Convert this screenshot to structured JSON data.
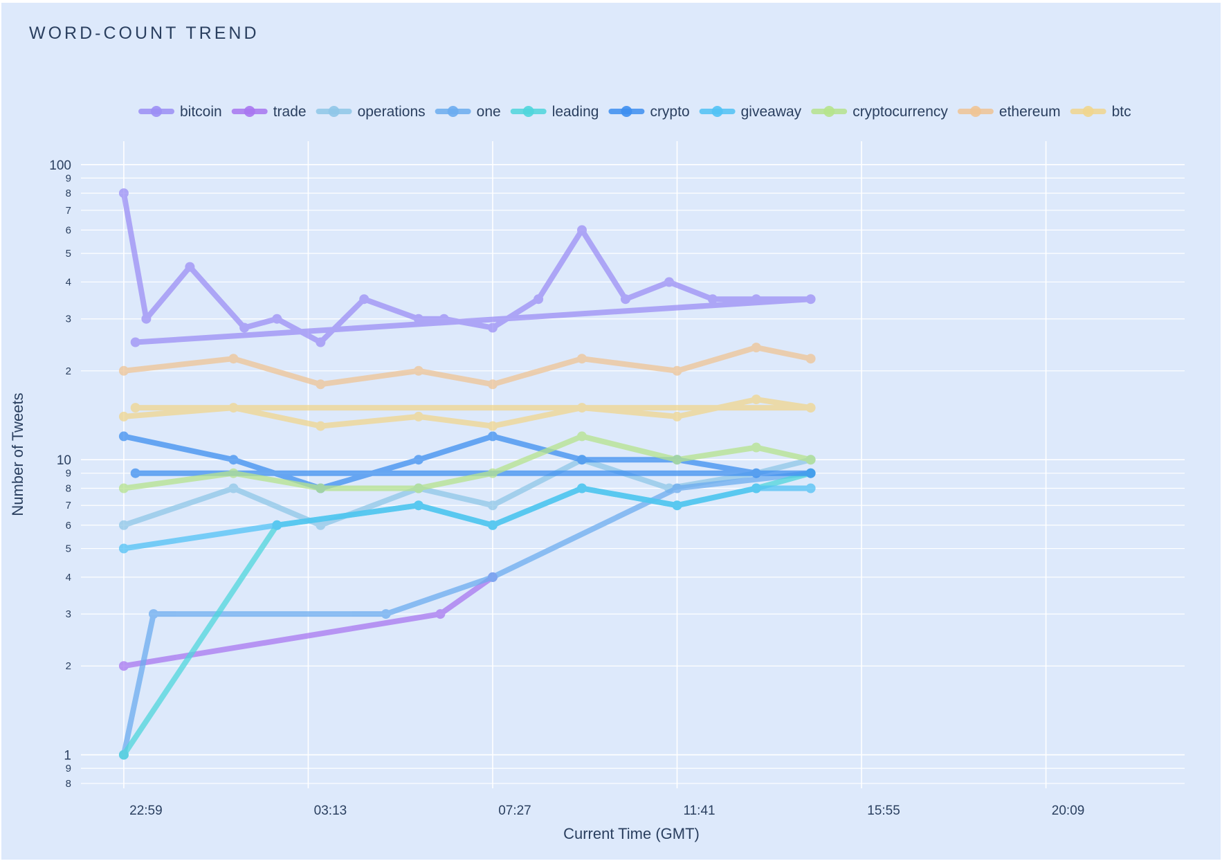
{
  "chart_data": {
    "type": "line",
    "title": "WORD-COUNT TREND",
    "xlabel": "Current Time (GMT)",
    "ylabel": "Number of Tweets",
    "y_scale": "log",
    "ylim": [
      0.77,
      120
    ],
    "xlim": [
      "22:00",
      "23:20 (+1 day)"
    ],
    "x_tick_labels": [
      "22:59",
      "03:13",
      "07:27",
      "11:41",
      "15:55",
      "20:09"
    ],
    "y_major_ticks": [
      {
        "value": 1,
        "label": "1"
      },
      {
        "value": 10,
        "label": "10"
      },
      {
        "value": 100,
        "label": "100"
      }
    ],
    "y_minor_ticks": [
      {
        "value": 0.8,
        "label": "8"
      },
      {
        "value": 0.9,
        "label": "9"
      },
      {
        "value": 2,
        "label": "2"
      },
      {
        "value": 3,
        "label": "3"
      },
      {
        "value": 4,
        "label": "4"
      },
      {
        "value": 5,
        "label": "5"
      },
      {
        "value": 6,
        "label": "6"
      },
      {
        "value": 7,
        "label": "7"
      },
      {
        "value": 8,
        "label": "8"
      },
      {
        "value": 9,
        "label": "9"
      },
      {
        "value": 20,
        "label": "2"
      },
      {
        "value": 30,
        "label": "3"
      },
      {
        "value": 40,
        "label": "4"
      },
      {
        "value": 50,
        "label": "5"
      },
      {
        "value": 60,
        "label": "6"
      },
      {
        "value": 70,
        "label": "7"
      },
      {
        "value": 80,
        "label": "8"
      },
      {
        "value": 90,
        "label": "9"
      }
    ],
    "grid": true,
    "legend": "top, horizontal",
    "series": [
      {
        "name": "bitcoin",
        "color": "#9c8ff5",
        "points": [
          [
            "22:59",
            80
          ],
          [
            "23:30",
            30
          ],
          [
            "00:30",
            45
          ],
          [
            "01:45",
            28
          ],
          [
            "02:30",
            30
          ],
          [
            "03:30",
            25
          ],
          [
            "04:30",
            35
          ],
          [
            "05:45",
            30
          ],
          [
            "06:20",
            30
          ],
          [
            "07:27",
            28
          ],
          [
            "08:30",
            35
          ],
          [
            "09:30",
            60
          ],
          [
            "10:30",
            35
          ],
          [
            "11:30",
            40
          ],
          [
            "12:30",
            35
          ],
          [
            "13:30",
            35
          ],
          [
            "14:45",
            35
          ],
          [
            "23:15",
            25
          ]
        ]
      },
      {
        "name": "trade",
        "color": "#a877f0",
        "points": [
          [
            "22:59",
            2
          ],
          [
            "06:15",
            3
          ],
          [
            "07:27",
            4
          ]
        ]
      },
      {
        "name": "operations",
        "color": "#8fc7e8",
        "points": [
          [
            "22:59",
            6
          ],
          [
            "01:30",
            8
          ],
          [
            "03:30",
            6
          ],
          [
            "05:45",
            8
          ],
          [
            "07:27",
            7
          ],
          [
            "09:30",
            10
          ],
          [
            "11:30",
            8
          ],
          [
            "13:30",
            9
          ],
          [
            "14:45",
            10
          ]
        ]
      },
      {
        "name": "one",
        "color": "#6cacef",
        "points": [
          [
            "22:59",
            1
          ],
          [
            "23:40",
            3
          ],
          [
            "05:00",
            3
          ],
          [
            "07:27",
            4
          ],
          [
            "11:41",
            8
          ],
          [
            "14:45",
            9
          ]
        ]
      },
      {
        "name": "leading",
        "color": "#4fd6dc",
        "points": [
          [
            "22:59",
            1
          ],
          [
            "02:30",
            6
          ],
          [
            "05:45",
            7
          ],
          [
            "07:27",
            6
          ],
          [
            "09:30",
            8
          ],
          [
            "11:41",
            7
          ],
          [
            "13:30",
            8
          ],
          [
            "14:45",
            9
          ]
        ]
      },
      {
        "name": "crypto",
        "color": "#3e8ff0",
        "points": [
          [
            "22:59",
            12
          ],
          [
            "01:30",
            10
          ],
          [
            "03:30",
            8
          ],
          [
            "05:45",
            10
          ],
          [
            "07:27",
            12
          ],
          [
            "09:30",
            10
          ],
          [
            "11:41",
            10
          ],
          [
            "13:30",
            9
          ],
          [
            "14:45",
            9
          ],
          [
            "23:15",
            9
          ]
        ]
      },
      {
        "name": "giveaway",
        "color": "#51c2f5",
        "points": [
          [
            "22:59",
            5
          ],
          [
            "02:30",
            6
          ],
          [
            "05:45",
            7
          ],
          [
            "07:27",
            6
          ],
          [
            "09:30",
            8
          ],
          [
            "11:41",
            7
          ],
          [
            "13:30",
            8
          ],
          [
            "14:45",
            8
          ]
        ]
      },
      {
        "name": "cryptocurrency",
        "color": "#b6e38d",
        "points": [
          [
            "22:59",
            8
          ],
          [
            "01:30",
            9
          ],
          [
            "03:30",
            8
          ],
          [
            "05:45",
            8
          ],
          [
            "07:27",
            9
          ],
          [
            "09:30",
            12
          ],
          [
            "11:41",
            10
          ],
          [
            "13:30",
            11
          ],
          [
            "14:45",
            10
          ]
        ]
      },
      {
        "name": "ethereum",
        "color": "#efc495",
        "points": [
          [
            "22:59",
            20
          ],
          [
            "01:30",
            22
          ],
          [
            "03:30",
            18
          ],
          [
            "05:45",
            20
          ],
          [
            "07:27",
            18
          ],
          [
            "09:30",
            22
          ],
          [
            "11:41",
            20
          ],
          [
            "13:30",
            24
          ],
          [
            "14:45",
            22
          ]
        ]
      },
      {
        "name": "btc",
        "color": "#f0d68e",
        "points": [
          [
            "22:59",
            14
          ],
          [
            "01:30",
            15
          ],
          [
            "03:30",
            13
          ],
          [
            "05:45",
            14
          ],
          [
            "07:27",
            13
          ],
          [
            "09:30",
            15
          ],
          [
            "11:41",
            14
          ],
          [
            "13:30",
            16
          ],
          [
            "14:45",
            15
          ],
          [
            "23:15",
            15
          ]
        ]
      }
    ]
  }
}
